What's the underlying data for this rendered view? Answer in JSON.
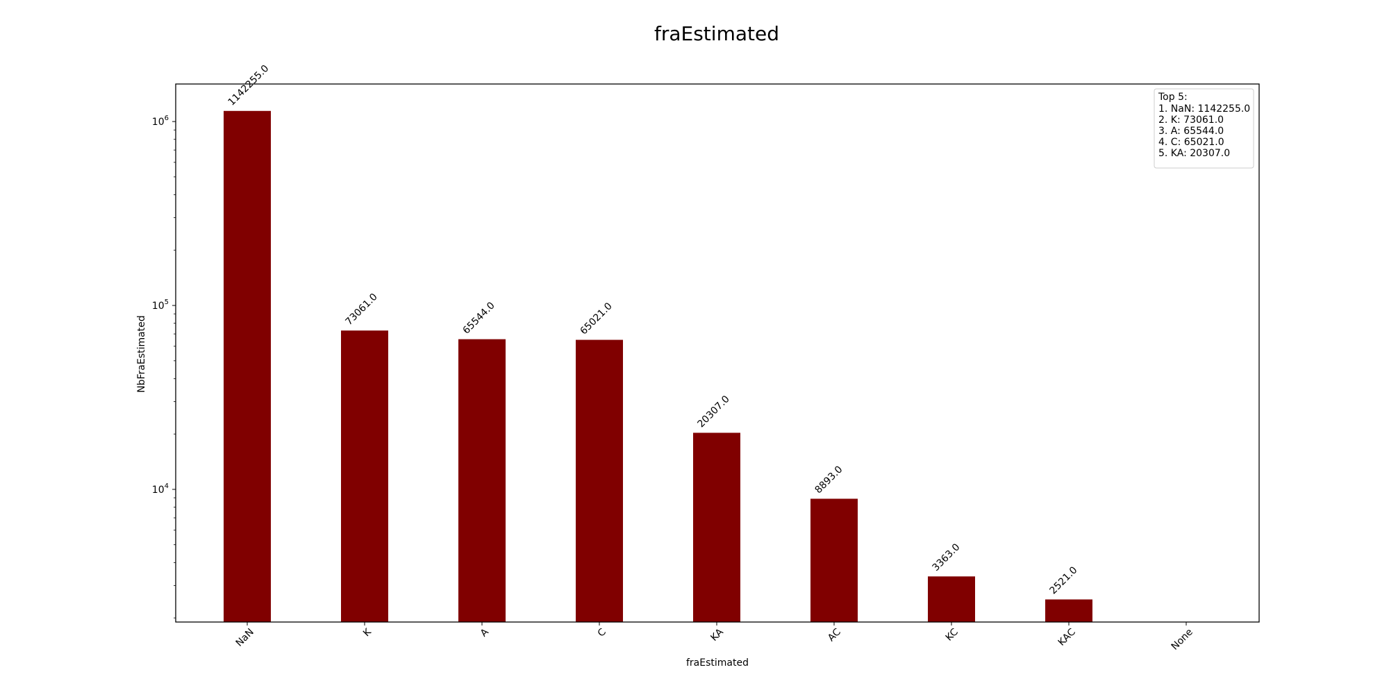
{
  "chart_data": {
    "type": "bar",
    "title": "fraEstimated",
    "xlabel": "fraEstimated",
    "ylabel": "NbFraEstimated",
    "yscale": "log",
    "categories": [
      "NaN",
      "K",
      "A",
      "C",
      "KA",
      "AC",
      "KC",
      "KAC",
      "None"
    ],
    "values": [
      1142255.0,
      73061.0,
      65544.0,
      65021.0,
      20307.0,
      8893.0,
      3363.0,
      2521.0,
      null
    ],
    "value_labels": [
      "1142255.0",
      "73061.0",
      "65544.0",
      "65021.0",
      "20307.0",
      "8893.0",
      "3363.0",
      "2521.0",
      ""
    ],
    "ylim": [
      1900,
      1600000
    ],
    "y_tick_labels": [
      {
        "base": "10",
        "exp": "4",
        "value": 10000
      },
      {
        "base": "10",
        "exp": "5",
        "value": 100000
      },
      {
        "base": "10",
        "exp": "6",
        "value": 1000000
      }
    ],
    "bar_color": "#800000",
    "grid": false,
    "legend_position": "top-right",
    "legend": {
      "title": "Top 5:",
      "items": [
        "1. NaN: 1142255.0",
        "2. K: 73061.0",
        "3. A: 65544.0",
        "4. C: 65021.0",
        "5. KA: 20307.0"
      ]
    }
  }
}
